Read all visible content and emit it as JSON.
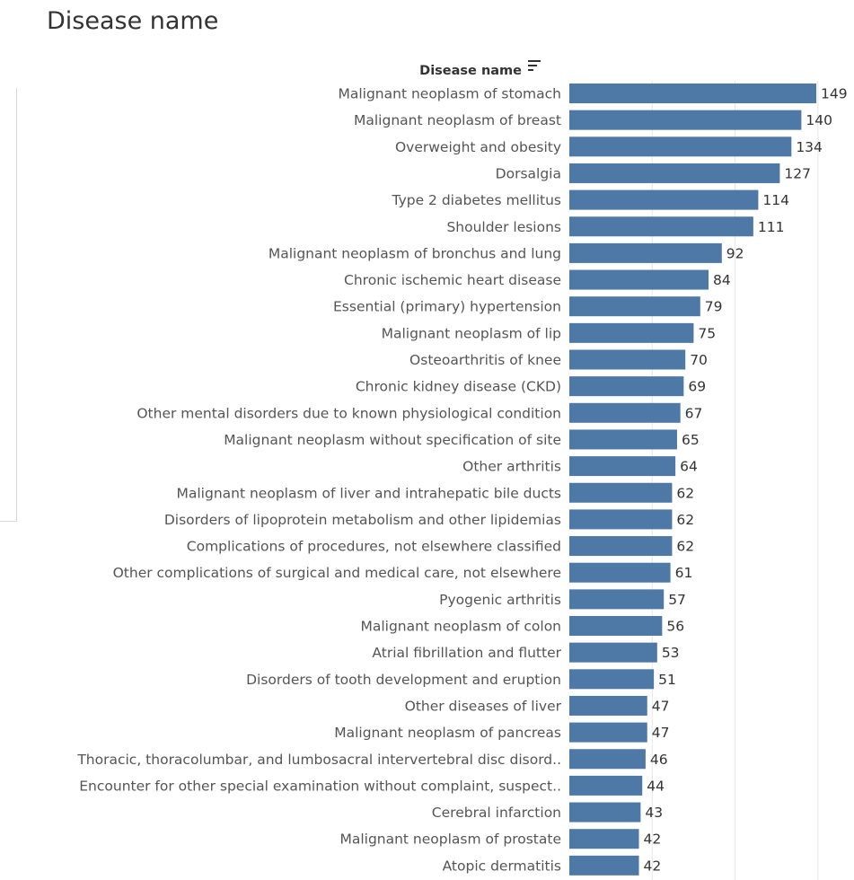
{
  "title": "Disease name",
  "chart_data": {
    "type": "bar",
    "orientation": "horizontal",
    "column_header": "Disease name",
    "sort_icon": "sort-descending-icon",
    "bar_color": "#4e79a7",
    "xlim": [
      0,
      160
    ],
    "grid": true,
    "categories": [
      "Malignant neoplasm of stomach",
      "Malignant neoplasm of breast",
      "Overweight and obesity",
      "Dorsalgia",
      "Type 2 diabetes mellitus",
      "Shoulder lesions",
      "Malignant neoplasm of bronchus and lung",
      "Chronic ischemic heart disease",
      "Essential (primary) hypertension",
      "Malignant neoplasm of lip",
      "Osteoarthritis of knee",
      "Chronic kidney disease (CKD)",
      "Other mental disorders due to known physiological condition",
      "Malignant neoplasm without specification of site",
      "Other arthritis",
      "Malignant neoplasm of liver and intrahepatic bile ducts",
      "Disorders of lipoprotein metabolism and other lipidemias",
      "Complications of procedures, not elsewhere classified",
      "Other complications of surgical and medical care, not elsewhere",
      "Pyogenic arthritis",
      "Malignant neoplasm of colon",
      "Atrial fibrillation and flutter",
      "Disorders of tooth development and eruption",
      "Other diseases of liver",
      "Malignant neoplasm of pancreas",
      "Thoracic, thoracolumbar, and lumbosacral intervertebral disc disord..",
      "Encounter for other special examination without complaint, suspect..",
      "Cerebral infarction",
      "Malignant neoplasm of prostate",
      "Atopic dermatitis"
    ],
    "values": [
      149,
      140,
      134,
      127,
      114,
      111,
      92,
      84,
      79,
      75,
      70,
      69,
      67,
      65,
      64,
      62,
      62,
      62,
      61,
      57,
      56,
      53,
      51,
      47,
      47,
      46,
      44,
      43,
      42,
      42
    ]
  }
}
